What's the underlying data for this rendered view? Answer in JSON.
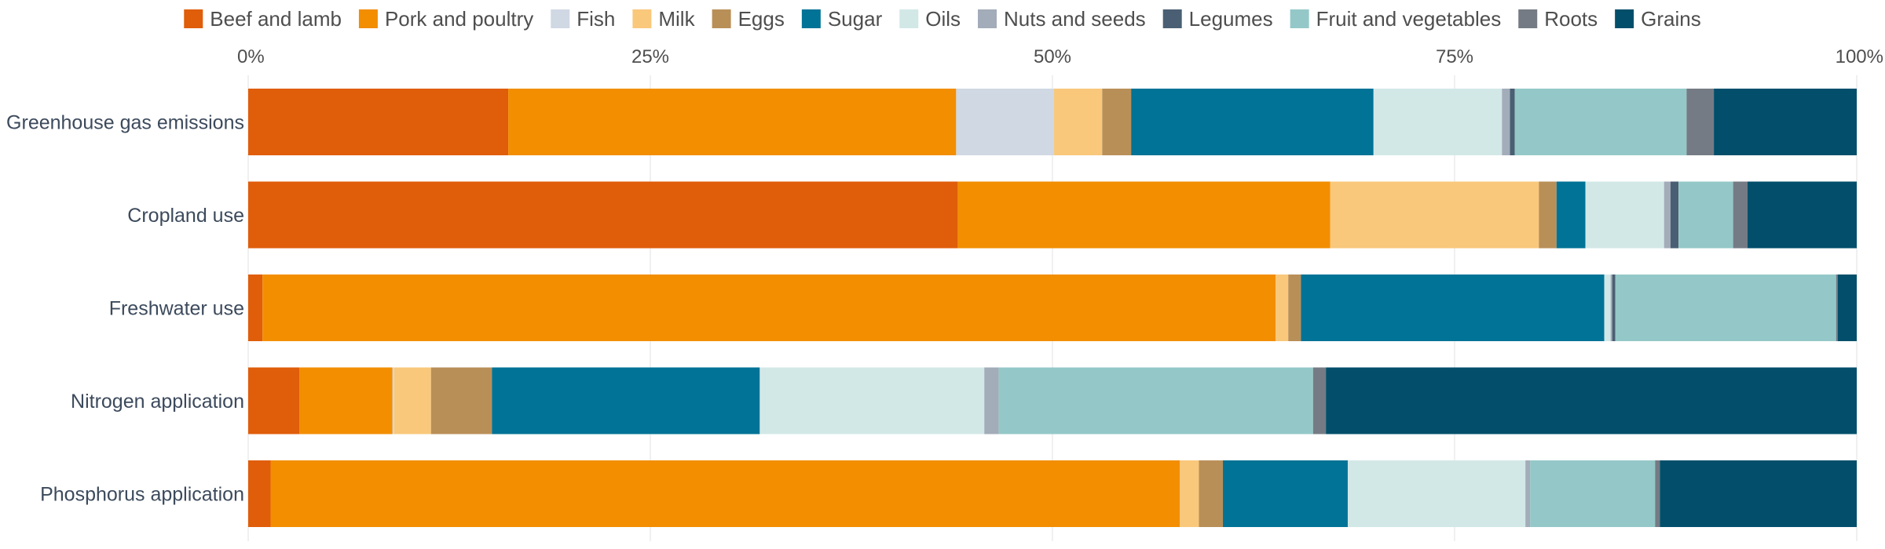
{
  "chart_data": {
    "type": "bar",
    "orientation": "horizontal",
    "stacked": true,
    "normalized": true,
    "title": "",
    "xlabel": "",
    "ylabel": "",
    "xlim": [
      0,
      100
    ],
    "x_ticks": [
      0,
      25,
      50,
      75,
      100
    ],
    "x_tick_labels": [
      "0%",
      "25%",
      "50%",
      "75%",
      "100%"
    ],
    "x_axis_position": "top",
    "grid": "vertical",
    "legend_position": "top",
    "categories": [
      "Greenhouse gas emissions",
      "Cropland use",
      "Freshwater use",
      "Nitrogen application",
      "Phosphorus application"
    ],
    "series": [
      {
        "name": "Beef and lamb",
        "color": "#e05d0a",
        "values": [
          16.2,
          44.2,
          0.9,
          3.2,
          1.4
        ]
      },
      {
        "name": "Pork and poultry",
        "color": "#f28e00",
        "values": [
          27.9,
          23.2,
          63.8,
          5.8,
          56.8
        ]
      },
      {
        "name": "Fish",
        "color": "#cfd8e3",
        "values": [
          6.1,
          0.0,
          0.0,
          0.1,
          0.0
        ]
      },
      {
        "name": "Milk",
        "color": "#f9c87b",
        "values": [
          3.0,
          13.0,
          0.8,
          2.3,
          1.2
        ]
      },
      {
        "name": "Eggs",
        "color": "#b98f58",
        "values": [
          1.8,
          1.1,
          0.8,
          3.8,
          1.5
        ]
      },
      {
        "name": "Sugar",
        "color": "#007396",
        "values": [
          15.1,
          1.8,
          19.1,
          16.7,
          7.8
        ]
      },
      {
        "name": "Oils",
        "color": "#d2e8e7",
        "values": [
          8.0,
          4.9,
          0.4,
          14.0,
          11.1
        ]
      },
      {
        "name": "Nuts and seeds",
        "color": "#a3acb9",
        "values": [
          0.5,
          0.4,
          0.1,
          0.9,
          0.3
        ]
      },
      {
        "name": "Legumes",
        "color": "#4a5f73",
        "values": [
          0.3,
          0.5,
          0.2,
          0.0,
          0.0
        ]
      },
      {
        "name": "Fruit and vegetables",
        "color": "#94c8c8",
        "values": [
          10.7,
          3.4,
          13.9,
          19.6,
          7.8
        ]
      },
      {
        "name": "Roots",
        "color": "#757b84",
        "values": [
          1.7,
          0.9,
          0.1,
          0.8,
          0.3
        ]
      },
      {
        "name": "Grains",
        "color": "#034f6b",
        "values": [
          8.9,
          6.8,
          1.2,
          33.1,
          12.3
        ]
      }
    ]
  }
}
